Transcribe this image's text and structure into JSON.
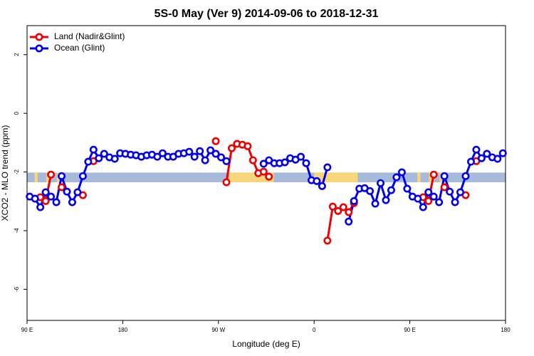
{
  "chart_data": {
    "type": "line",
    "title": "5S-0 May (Ver 9)   2014-09-06 to 2018-12-31",
    "xlabel": "Longitude (deg E)",
    "ylabel": "XCO2 - MLO trend (ppm)",
    "xlim": [
      90,
      540
    ],
    "ylim": [
      -7.06,
      2.99
    ],
    "xticks": [
      {
        "value": 90,
        "label": "90 E"
      },
      180,
      {
        "value": 270,
        "label": "90 W"
      },
      {
        "value": 360,
        "label": "0"
      },
      {
        "value": 450,
        "label": "90 E"
      },
      {
        "value": 540,
        "label": "180"
      }
    ],
    "yticks": [
      2,
      0,
      -2,
      -4,
      -6
    ],
    "legend": "top-left",
    "band": {
      "ymin": -2.35,
      "ymax": -2.02,
      "color": "#a7bad9",
      "land_color": "#f9d67a",
      "land": [
        [
          97,
          100
        ],
        [
          108,
          111
        ],
        [
          118,
          121
        ],
        [
          280,
          322
        ],
        [
          360,
          401
        ],
        [
          457,
          460
        ],
        [
          468,
          471
        ],
        [
          478,
          481
        ]
      ]
    },
    "x": [
      92.5,
      97.5,
      102.5,
      107.5,
      112.5,
      117.5,
      122.5,
      127.5,
      132.5,
      137.5,
      142.5,
      147.5,
      152.5,
      157.5,
      162.5,
      167.5,
      172.5,
      177.5,
      182.5,
      187.5,
      192.5,
      197.5,
      202.5,
      207.5,
      212.5,
      217.5,
      222.5,
      227.5,
      232.5,
      237.5,
      242.5,
      247.5,
      252.5,
      257.5,
      262.5,
      267.5,
      272.5,
      277.5,
      282.5,
      287.5,
      292.5,
      297.5,
      302.5,
      307.5,
      312.5,
      317.5,
      322.5,
      327.5,
      332.5,
      337.5,
      342.5,
      347.5,
      352.5,
      357.5,
      362.5,
      367.5,
      372.5,
      377.5,
      382.5,
      387.5,
      392.5,
      397.5,
      402.5,
      407.5,
      412.5,
      417.5,
      422.5,
      427.5,
      432.5,
      437.5,
      442.5,
      447.5,
      452.5,
      457.5,
      462.5,
      467.5,
      472.5,
      477.5,
      482.5,
      487.5,
      492.5,
      497.5,
      502.5,
      507.5,
      512.5,
      517.5,
      522.5,
      527.5,
      532.5,
      537.5
    ],
    "series": [
      {
        "name": "Land (Nadir&Glint)",
        "color": "#ee0000",
        "values": [
          null,
          null,
          -2.86,
          -2.99,
          -2.09,
          null,
          -2.52,
          null,
          null,
          null,
          -2.79,
          null,
          -1.63,
          null,
          null,
          null,
          null,
          null,
          null,
          null,
          null,
          null,
          null,
          null,
          null,
          null,
          null,
          null,
          null,
          null,
          null,
          null,
          null,
          null,
          null,
          -0.95,
          null,
          -2.35,
          -1.19,
          -1.04,
          -1.07,
          -1.12,
          -1.6,
          -2.04,
          -1.99,
          -2.16,
          null,
          null,
          null,
          null,
          null,
          null,
          null,
          null,
          null,
          null,
          -4.34,
          -3.18,
          -3.33,
          -3.2,
          -3.37,
          -3.06,
          null,
          null,
          null,
          null,
          null,
          null,
          null,
          null,
          null,
          null,
          null,
          null,
          -2.86,
          -2.99,
          -2.09,
          null,
          -2.52,
          null,
          null,
          null,
          -2.79,
          null,
          -1.63,
          null,
          null,
          null,
          null,
          null
        ]
      },
      {
        "name": "Ocean (Glint)",
        "color": "#0000ee",
        "values": [
          -2.84,
          -2.91,
          -3.2,
          -2.69,
          -2.84,
          -3.03,
          -2.14,
          -2.67,
          -3.03,
          -2.69,
          -2.14,
          -1.65,
          -1.24,
          -1.53,
          -1.38,
          -1.5,
          -1.55,
          -1.36,
          -1.38,
          -1.41,
          -1.43,
          -1.48,
          -1.43,
          -1.41,
          -1.48,
          -1.36,
          -1.48,
          -1.48,
          -1.38,
          -1.36,
          -1.31,
          -1.48,
          -1.29,
          -1.6,
          -1.26,
          -1.38,
          -1.5,
          -1.63,
          null,
          null,
          null,
          null,
          null,
          null,
          -1.72,
          -1.6,
          -1.7,
          -1.7,
          -1.67,
          -1.53,
          -1.58,
          -1.48,
          -1.7,
          -2.28,
          -2.31,
          -2.48,
          -1.84,
          null,
          null,
          null,
          -3.69,
          -2.99,
          -2.57,
          -2.55,
          -2.65,
          -3.08,
          -2.38,
          -2.96,
          -2.62,
          -2.18,
          -2.01,
          -2.57,
          -2.84,
          -2.91,
          -3.2,
          -2.69,
          -2.84,
          -3.03,
          -2.14,
          -2.67,
          -3.03,
          -2.69,
          -2.14,
          -1.65,
          -1.24,
          -1.53,
          -1.38,
          -1.5,
          -1.55,
          -1.36
        ]
      }
    ]
  }
}
